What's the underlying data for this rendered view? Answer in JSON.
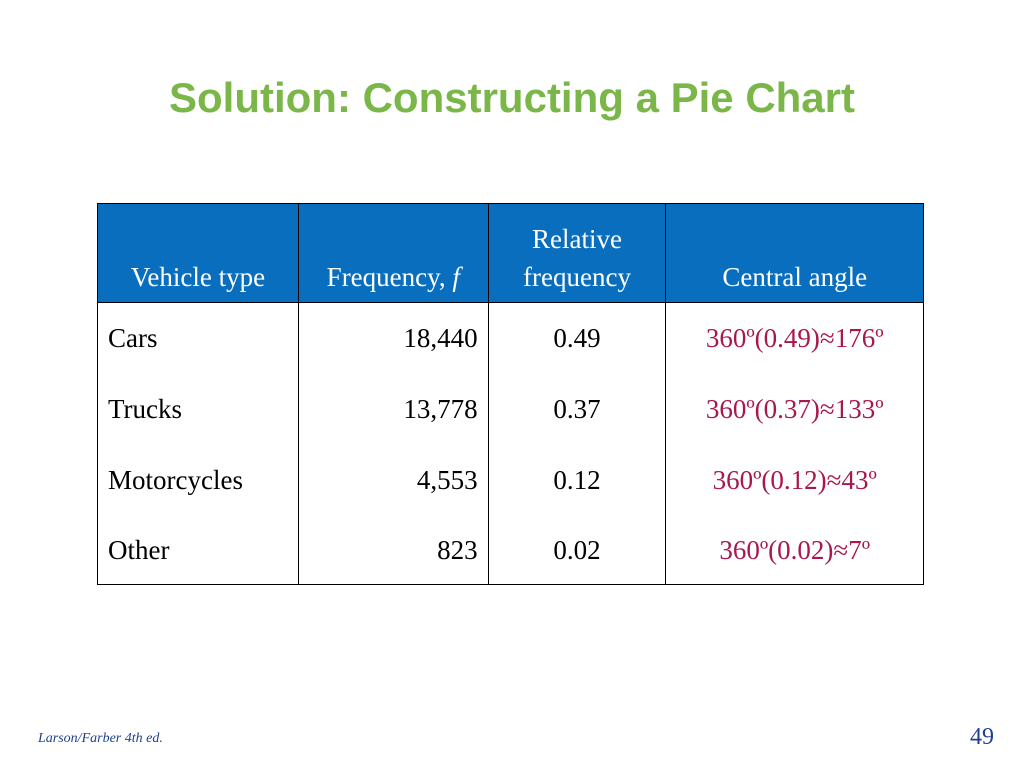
{
  "title": "Solution: Constructing a Pie Chart",
  "table": {
    "headers": {
      "vehicle_type": "Vehicle type",
      "frequency": "Frequency, ",
      "frequency_symbol": "f",
      "relative_line1": "Relative",
      "relative_line2": "frequency",
      "central_angle": "Central angle"
    },
    "rows": [
      {
        "type": "Cars",
        "frequency": "18,440",
        "relative": "0.49",
        "angle": "360º(0.49)≈176º"
      },
      {
        "type": "Trucks",
        "frequency": "13,778",
        "relative": "0.37",
        "angle": "360º(0.37)≈133º"
      },
      {
        "type": "Motorcycles",
        "frequency": "4,553",
        "relative": "0.12",
        "angle": "360º(0.12)≈43º"
      },
      {
        "type": "Other",
        "frequency": "823",
        "relative": "0.02",
        "angle": "360º(0.02)≈7º"
      }
    ]
  },
  "footer": {
    "citation": "Larson/Farber 4th ed.",
    "page_number": "49"
  },
  "colors": {
    "title": "#7ab648",
    "header_bg": "#0a6ebf",
    "angle_text": "#a8174e",
    "footer_text": "#1f3f8f"
  }
}
